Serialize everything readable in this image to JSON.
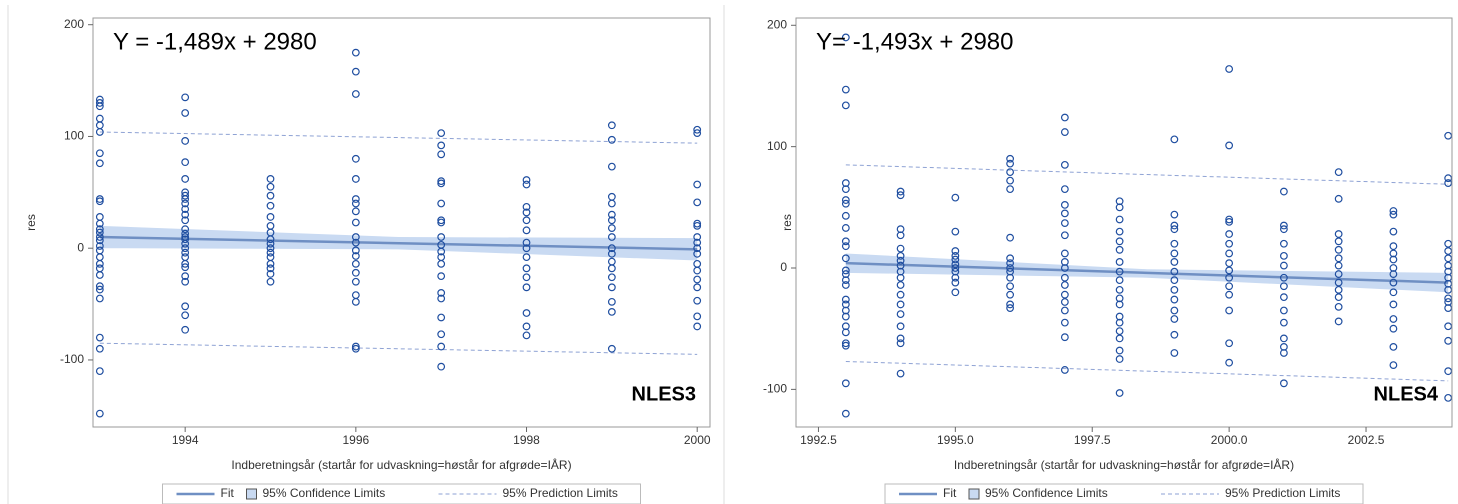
{
  "chart_data": [
    {
      "type": "scatter",
      "annotations": [
        "Y = -1,489x + 2980",
        "NLES3"
      ],
      "x_label": "Indberetningsår (startår for udvaskning=høstår for afgrøde=IÅR)",
      "y_label": "res",
      "xlim": [
        1992.92,
        2000.15
      ],
      "ylim": [
        -160,
        206
      ],
      "xticks": [
        1994,
        1996,
        1998,
        2000
      ],
      "yticks": [
        -100,
        0,
        100,
        200
      ],
      "point_color": "#1f4ea0",
      "points": [
        {
          "x": 1993,
          "values": [
            133,
            130,
            127,
            116,
            110,
            104,
            85,
            76,
            44,
            42,
            28,
            22,
            17,
            14,
            10,
            7,
            2,
            -2,
            -8,
            -14,
            -18,
            -24,
            -34,
            -37,
            -45,
            -80,
            -90,
            -110,
            -148
          ]
        },
        {
          "x": 1994,
          "values": [
            135,
            121,
            96,
            77,
            62,
            50,
            47,
            44,
            40,
            35,
            30,
            25,
            17,
            13,
            10,
            8,
            4,
            0,
            -4,
            -8,
            -14,
            -17,
            -25,
            -30,
            -52,
            -60,
            -73
          ]
        },
        {
          "x": 1995,
          "values": [
            62,
            55,
            47,
            38,
            28,
            20,
            14,
            8,
            4,
            0,
            -4,
            -8,
            -14,
            -18,
            -23,
            -30
          ]
        },
        {
          "x": 1996,
          "values": [
            175,
            158,
            138,
            80,
            62,
            44,
            40,
            33,
            23,
            10,
            5,
            -2,
            -7,
            -14,
            -22,
            -30,
            -42,
            -48,
            -88,
            -90
          ]
        },
        {
          "x": 1997,
          "values": [
            103,
            92,
            84,
            60,
            58,
            40,
            25,
            23,
            10,
            3,
            -3,
            -8,
            -14,
            -25,
            -40,
            -45,
            -62,
            -77,
            -88,
            -106
          ]
        },
        {
          "x": 1998,
          "values": [
            61,
            57,
            37,
            32,
            25,
            16,
            5,
            0,
            -8,
            -18,
            -26,
            -35,
            -58,
            -70,
            -78
          ]
        },
        {
          "x": 1999,
          "values": [
            110,
            97,
            73,
            46,
            40,
            30,
            25,
            18,
            10,
            0,
            -5,
            -12,
            -18,
            -26,
            -35,
            -48,
            -57,
            -90
          ]
        },
        {
          "x": 2000,
          "values": [
            106,
            103,
            57,
            41,
            22,
            20,
            10,
            5,
            0,
            -5,
            -14,
            -20,
            -28,
            -35,
            -47,
            -61,
            -70
          ]
        }
      ],
      "fit": {
        "name": "Fit",
        "color": "#6f8fc3",
        "x": [
          1993,
          2000
        ],
        "values": [
          10,
          -1
        ]
      },
      "confidence": {
        "name": "95% Confidence Limits",
        "color": "#c9daf2",
        "x": [
          1993,
          1996.5,
          2000
        ],
        "lower": [
          0,
          -1,
          -11
        ],
        "upper": [
          20,
          10,
          9
        ]
      },
      "prediction": {
        "name": "95% Prediction Limits",
        "color": "#8ea2d4",
        "x": [
          1993,
          2000
        ],
        "lower": [
          -85,
          -95
        ],
        "upper": [
          104,
          94
        ]
      }
    },
    {
      "type": "scatter",
      "annotations": [
        "Y= -1,493x + 2980",
        "NLES4"
      ],
      "x_label": "Indberetningsår (startår for udvaskning=høstår for afgrøde=IÅR)",
      "y_label": "res",
      "xlim": [
        1992.09,
        2004.07
      ],
      "ylim": [
        -131,
        206
      ],
      "xticks": [
        1992.5,
        {
          "value": 1995,
          "label": "1995.0"
        },
        1997.5,
        {
          "value": 2000,
          "label": "2000.0"
        },
        2002.5
      ],
      "yticks": [
        -100,
        0,
        100,
        200
      ],
      "point_color": "#1f4ea0",
      "points": [
        {
          "x": 1993,
          "values": [
            190,
            147,
            134,
            70,
            65,
            56,
            53,
            43,
            33,
            22,
            18,
            8,
            -2,
            -5,
            -10,
            -14,
            -26,
            -30,
            -35,
            -40,
            -48,
            -53,
            -62,
            -64,
            -95,
            -120
          ]
        },
        {
          "x": 1994,
          "values": [
            63,
            60,
            32,
            27,
            16,
            10,
            6,
            2,
            -3,
            -8,
            -14,
            -22,
            -30,
            -38,
            -48,
            -58,
            -62,
            -87
          ]
        },
        {
          "x": 1995,
          "values": [
            58,
            30,
            14,
            10,
            7,
            3,
            0,
            -3,
            -8,
            -12,
            -20
          ]
        },
        {
          "x": 1996,
          "values": [
            90,
            86,
            79,
            72,
            65,
            25,
            8,
            4,
            0,
            -3,
            -8,
            -15,
            -22,
            -30,
            -33
          ]
        },
        {
          "x": 1997,
          "values": [
            124,
            112,
            85,
            65,
            52,
            45,
            37,
            27,
            12,
            5,
            0,
            -8,
            -14,
            -22,
            -28,
            -35,
            -45,
            -57,
            -84
          ]
        },
        {
          "x": 1998,
          "values": [
            55,
            50,
            40,
            30,
            22,
            15,
            5,
            -3,
            -10,
            -18,
            -25,
            -30,
            -40,
            -45,
            -52,
            -58,
            -68,
            -75,
            -103
          ]
        },
        {
          "x": 1999,
          "values": [
            106,
            44,
            35,
            32,
            20,
            12,
            5,
            -3,
            -10,
            -18,
            -26,
            -35,
            -42,
            -55,
            -70
          ]
        },
        {
          "x": 2000,
          "values": [
            164,
            101,
            40,
            38,
            28,
            20,
            12,
            4,
            -2,
            -8,
            -15,
            -22,
            -35,
            -62,
            -78
          ]
        },
        {
          "x": 2001,
          "values": [
            63,
            35,
            32,
            20,
            10,
            2,
            -8,
            -15,
            -24,
            -35,
            -45,
            -58,
            -65,
            -70,
            -95
          ]
        },
        {
          "x": 2002,
          "values": [
            79,
            57,
            28,
            22,
            15,
            8,
            2,
            -5,
            -12,
            -18,
            -24,
            -32,
            -44
          ]
        },
        {
          "x": 2003,
          "values": [
            47,
            44,
            30,
            18,
            12,
            7,
            0,
            -5,
            -12,
            -20,
            -30,
            -42,
            -50,
            -65,
            -80
          ]
        },
        {
          "x": 2004,
          "values": [
            109,
            74,
            70,
            20,
            14,
            8,
            2,
            -3,
            -8,
            -13,
            -18,
            -25,
            -28,
            -33,
            -48,
            -60,
            -85,
            -107
          ]
        }
      ],
      "fit": {
        "name": "Fit",
        "color": "#6f8fc3",
        "x": [
          1993,
          2004
        ],
        "values": [
          4,
          -12
        ]
      },
      "confidence": {
        "name": "95% Confidence Limits",
        "color": "#c9daf2",
        "x": [
          1993,
          1998.5,
          2004
        ],
        "lower": [
          -4,
          -8,
          -20
        ],
        "upper": [
          12,
          -1,
          -4
        ]
      },
      "prediction": {
        "name": "95% Prediction Limits",
        "color": "#8ea2d4",
        "x": [
          1993,
          2004
        ],
        "lower": [
          -77,
          -93
        ],
        "upper": [
          85,
          69
        ]
      }
    }
  ]
}
